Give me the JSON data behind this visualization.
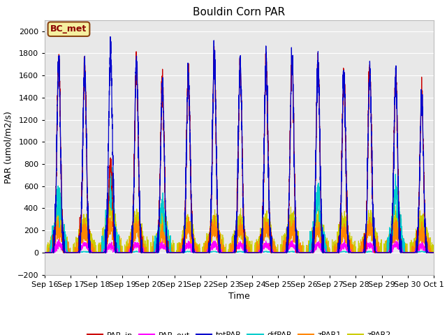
{
  "title": "Bouldin Corn PAR",
  "xlabel": "Time",
  "ylabel": "PAR (umol/m2/s)",
  "ylim": [
    -200,
    2100
  ],
  "n_days": 15,
  "background_color": "#e8e8e8",
  "grid_color": "white",
  "annotation_text": "BC_met",
  "annotation_bg": "#f5f0a0",
  "annotation_border": "#8b4513",
  "x_tick_labels": [
    "Sep 16",
    "Sep 17",
    "Sep 18",
    "Sep 19",
    "Sep 20",
    "Sep 21",
    "Sep 22",
    "Sep 23",
    "Sep 24",
    "Sep 25",
    "Sep 26",
    "Sep 27",
    "Sep 28",
    "Sep 29",
    "Sep 30",
    "Oct 1"
  ],
  "par_in_peaks": [
    1720,
    1670,
    820,
    1700,
    1500,
    1590,
    1730,
    1680,
    1700,
    1730,
    1700,
    1600,
    1630,
    1580,
    1390
  ],
  "tot_peaks": [
    1730,
    1680,
    1850,
    1710,
    1500,
    1600,
    1745,
    1700,
    1720,
    1740,
    1700,
    1600,
    1640,
    1600,
    1400
  ],
  "par_out_peaks": [
    80,
    75,
    60,
    75,
    65,
    70,
    75,
    70,
    75,
    75,
    70,
    70,
    70,
    70,
    60
  ],
  "dif_peaks": [
    500,
    30,
    600,
    30,
    400,
    30,
    30,
    30,
    30,
    30,
    500,
    30,
    30,
    530,
    30
  ],
  "zpar1_peaks": [
    230,
    190,
    240,
    220,
    180,
    200,
    210,
    200,
    220,
    200,
    200,
    190,
    210,
    200,
    180
  ],
  "zpar2_peaks": [
    280,
    260,
    390,
    280,
    270,
    270,
    270,
    270,
    280,
    270,
    280,
    270,
    280,
    275,
    255
  ],
  "series_colors": {
    "PAR_in": "#cc0000",
    "PAR_out": "#ff00ff",
    "totPAR": "#0000cc",
    "difPAR": "#00cccc",
    "zPAR1": "#ff8800",
    "zPAR2": "#cccc00"
  }
}
